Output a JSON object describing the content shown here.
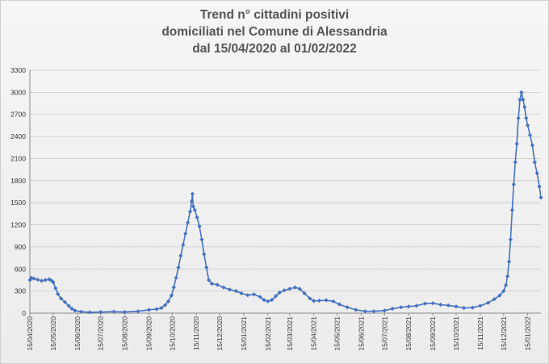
{
  "chart_data": {
    "type": "line",
    "title_lines": [
      "Trend n° cittadini positivi",
      "domiciliati nel Comune di Alessandria",
      "dal 15/04/2020 al 01/02/2022"
    ],
    "xlabel": "",
    "ylabel": "",
    "ylim": [
      0,
      3300
    ],
    "yticks": [
      0,
      300,
      600,
      900,
      1200,
      1500,
      1800,
      2100,
      2400,
      2700,
      3000,
      3300
    ],
    "xrange": [
      "2020-04-15",
      "2022-02-01"
    ],
    "xticks": [
      {
        "date": "2020-04-15",
        "label": "15/04/2020"
      },
      {
        "date": "2020-05-15",
        "label": "15/05/2020"
      },
      {
        "date": "2020-06-15",
        "label": "15/06/2020"
      },
      {
        "date": "2020-07-15",
        "label": "15/07/2020"
      },
      {
        "date": "2020-08-15",
        "label": "15/08/2020"
      },
      {
        "date": "2020-09-15",
        "label": "15/09/2020"
      },
      {
        "date": "2020-10-15",
        "label": "15/10/2020"
      },
      {
        "date": "2020-11-15",
        "label": "15/11/2020"
      },
      {
        "date": "2020-12-15",
        "label": "15/12/2020"
      },
      {
        "date": "2021-01-15",
        "label": "15/01/2021"
      },
      {
        "date": "2021-02-15",
        "label": "15/02/2021"
      },
      {
        "date": "2021-03-15",
        "label": "15/03/2021"
      },
      {
        "date": "2021-04-15",
        "label": "15/04/2021"
      },
      {
        "date": "2021-05-15",
        "label": "15/05/2021"
      },
      {
        "date": "2021-06-15",
        "label": "15/06/2021"
      },
      {
        "date": "2021-07-15",
        "label": "15/07/2021"
      },
      {
        "date": "2021-08-15",
        "label": "15/08/2021"
      },
      {
        "date": "2021-09-15",
        "label": "15/09/2021"
      },
      {
        "date": "2021-10-15",
        "label": "15/10/2021"
      },
      {
        "date": "2021-11-15",
        "label": "15/11/2021"
      },
      {
        "date": "2021-12-15",
        "label": "15/12/2021"
      },
      {
        "date": "2022-01-15",
        "label": "15/01/2022"
      }
    ],
    "grid": true,
    "legend": "none",
    "series": [
      {
        "color": "#4472c4",
        "marker": "diamond",
        "points": [
          {
            "x": "2020-04-15",
            "y": 450
          },
          {
            "x": "2020-04-17",
            "y": 480
          },
          {
            "x": "2020-04-20",
            "y": 470
          },
          {
            "x": "2020-04-25",
            "y": 455
          },
          {
            "x": "2020-04-30",
            "y": 440
          },
          {
            "x": "2020-05-05",
            "y": 450
          },
          {
            "x": "2020-05-10",
            "y": 460
          },
          {
            "x": "2020-05-13",
            "y": 440
          },
          {
            "x": "2020-05-15",
            "y": 420
          },
          {
            "x": "2020-05-18",
            "y": 340
          },
          {
            "x": "2020-05-21",
            "y": 260
          },
          {
            "x": "2020-05-25",
            "y": 200
          },
          {
            "x": "2020-05-30",
            "y": 150
          },
          {
            "x": "2020-06-04",
            "y": 100
          },
          {
            "x": "2020-06-08",
            "y": 60
          },
          {
            "x": "2020-06-12",
            "y": 35
          },
          {
            "x": "2020-06-20",
            "y": 20
          },
          {
            "x": "2020-07-01",
            "y": 12
          },
          {
            "x": "2020-07-15",
            "y": 15
          },
          {
            "x": "2020-08-01",
            "y": 20
          },
          {
            "x": "2020-08-15",
            "y": 15
          },
          {
            "x": "2020-09-01",
            "y": 25
          },
          {
            "x": "2020-09-15",
            "y": 45
          },
          {
            "x": "2020-09-25",
            "y": 55
          },
          {
            "x": "2020-10-01",
            "y": 70
          },
          {
            "x": "2020-10-06",
            "y": 110
          },
          {
            "x": "2020-10-10",
            "y": 160
          },
          {
            "x": "2020-10-14",
            "y": 240
          },
          {
            "x": "2020-10-17",
            "y": 350
          },
          {
            "x": "2020-10-20",
            "y": 480
          },
          {
            "x": "2020-10-23",
            "y": 620
          },
          {
            "x": "2020-10-26",
            "y": 780
          },
          {
            "x": "2020-10-29",
            "y": 930
          },
          {
            "x": "2020-11-01",
            "y": 1080
          },
          {
            "x": "2020-11-04",
            "y": 1230
          },
          {
            "x": "2020-11-07",
            "y": 1380
          },
          {
            "x": "2020-11-09",
            "y": 1520
          },
          {
            "x": "2020-11-10",
            "y": 1620
          },
          {
            "x": "2020-11-11",
            "y": 1450
          },
          {
            "x": "2020-11-13",
            "y": 1400
          },
          {
            "x": "2020-11-16",
            "y": 1300
          },
          {
            "x": "2020-11-19",
            "y": 1180
          },
          {
            "x": "2020-11-22",
            "y": 1000
          },
          {
            "x": "2020-11-25",
            "y": 800
          },
          {
            "x": "2020-11-28",
            "y": 620
          },
          {
            "x": "2020-12-01",
            "y": 450
          },
          {
            "x": "2020-12-05",
            "y": 400
          },
          {
            "x": "2020-12-12",
            "y": 385
          },
          {
            "x": "2020-12-20",
            "y": 350
          },
          {
            "x": "2020-12-28",
            "y": 320
          },
          {
            "x": "2021-01-05",
            "y": 300
          },
          {
            "x": "2021-01-12",
            "y": 270
          },
          {
            "x": "2021-01-20",
            "y": 245
          },
          {
            "x": "2021-01-28",
            "y": 255
          },
          {
            "x": "2021-02-05",
            "y": 220
          },
          {
            "x": "2021-02-10",
            "y": 180
          },
          {
            "x": "2021-02-15",
            "y": 160
          },
          {
            "x": "2021-02-20",
            "y": 180
          },
          {
            "x": "2021-02-25",
            "y": 230
          },
          {
            "x": "2021-03-02",
            "y": 280
          },
          {
            "x": "2021-03-08",
            "y": 310
          },
          {
            "x": "2021-03-15",
            "y": 330
          },
          {
            "x": "2021-03-22",
            "y": 350
          },
          {
            "x": "2021-03-28",
            "y": 330
          },
          {
            "x": "2021-04-03",
            "y": 270
          },
          {
            "x": "2021-04-10",
            "y": 200
          },
          {
            "x": "2021-04-15",
            "y": 165
          },
          {
            "x": "2021-04-22",
            "y": 170
          },
          {
            "x": "2021-05-01",
            "y": 175
          },
          {
            "x": "2021-05-10",
            "y": 160
          },
          {
            "x": "2021-05-18",
            "y": 120
          },
          {
            "x": "2021-05-28",
            "y": 80
          },
          {
            "x": "2021-06-08",
            "y": 45
          },
          {
            "x": "2021-06-20",
            "y": 25
          },
          {
            "x": "2021-07-01",
            "y": 25
          },
          {
            "x": "2021-07-15",
            "y": 35
          },
          {
            "x": "2021-07-25",
            "y": 60
          },
          {
            "x": "2021-08-05",
            "y": 80
          },
          {
            "x": "2021-08-15",
            "y": 90
          },
          {
            "x": "2021-08-25",
            "y": 100
          },
          {
            "x": "2021-09-05",
            "y": 130
          },
          {
            "x": "2021-09-15",
            "y": 135
          },
          {
            "x": "2021-09-25",
            "y": 115
          },
          {
            "x": "2021-10-05",
            "y": 105
          },
          {
            "x": "2021-10-15",
            "y": 90
          },
          {
            "x": "2021-10-25",
            "y": 70
          },
          {
            "x": "2021-11-05",
            "y": 75
          },
          {
            "x": "2021-11-15",
            "y": 100
          },
          {
            "x": "2021-11-25",
            "y": 140
          },
          {
            "x": "2021-12-03",
            "y": 190
          },
          {
            "x": "2021-12-10",
            "y": 240
          },
          {
            "x": "2021-12-15",
            "y": 300
          },
          {
            "x": "2021-12-18",
            "y": 380
          },
          {
            "x": "2021-12-20",
            "y": 500
          },
          {
            "x": "2021-12-22",
            "y": 700
          },
          {
            "x": "2021-12-24",
            "y": 1000
          },
          {
            "x": "2021-12-26",
            "y": 1400
          },
          {
            "x": "2021-12-28",
            "y": 1750
          },
          {
            "x": "2021-12-30",
            "y": 2050
          },
          {
            "x": "2022-01-01",
            "y": 2300
          },
          {
            "x": "2022-01-03",
            "y": 2650
          },
          {
            "x": "2022-01-05",
            "y": 2900
          },
          {
            "x": "2022-01-07",
            "y": 3000
          },
          {
            "x": "2022-01-09",
            "y": 2900
          },
          {
            "x": "2022-01-11",
            "y": 2800
          },
          {
            "x": "2022-01-13",
            "y": 2650
          },
          {
            "x": "2022-01-15",
            "y": 2550
          },
          {
            "x": "2022-01-18",
            "y": 2420
          },
          {
            "x": "2022-01-21",
            "y": 2280
          },
          {
            "x": "2022-01-24",
            "y": 2050
          },
          {
            "x": "2022-01-27",
            "y": 1900
          },
          {
            "x": "2022-01-30",
            "y": 1720
          },
          {
            "x": "2022-02-01",
            "y": 1570
          }
        ]
      }
    ]
  }
}
